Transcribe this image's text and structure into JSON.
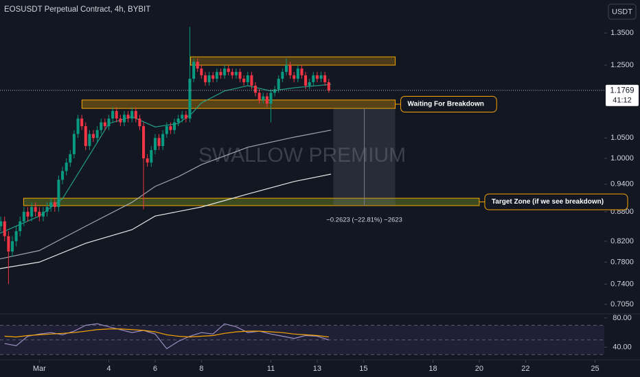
{
  "chart_data": [
    {
      "type": "candlestick",
      "title": "EOSUSDT Perpetual Contract, 4h, BYBIT",
      "watermark": "SWALLOW PREMIUM",
      "currency": "USDT",
      "x": [
        -0.667,
        -0.5,
        -0.333,
        -0.167,
        0,
        0.167,
        0.333,
        0.5,
        0.667,
        0.833,
        1,
        1.167,
        1.333,
        1.5,
        1.667,
        1.833,
        2,
        2.167,
        2.333,
        2.5,
        2.667,
        2.833,
        3,
        3.167,
        3.333,
        3.5,
        3.667,
        3.833,
        4,
        4.167,
        4.333,
        4.5,
        4.667,
        4.833,
        5,
        5.167,
        5.333,
        5.5,
        5.667,
        5.833,
        6,
        6.167,
        6.333,
        6.5,
        6.667,
        6.833,
        7,
        7.167,
        7.333,
        7.5,
        7.667,
        7.833,
        8,
        8.167,
        8.333,
        8.5,
        8.667,
        8.833,
        9,
        9.167,
        9.333,
        9.5,
        9.667,
        9.833,
        10,
        10.167,
        10.333,
        10.5,
        10.667,
        10.833,
        11,
        11.167,
        11.333,
        11.5,
        11.667,
        11.833,
        12,
        12.167,
        12.333,
        12.5,
        12.667,
        12.833,
        13,
        13.167,
        13.333,
        13.5
      ],
      "open": [
        0.85,
        0.86,
        0.83,
        0.8,
        0.82,
        0.84,
        0.86,
        0.88,
        0.87,
        0.89,
        0.88,
        0.87,
        0.88,
        0.89,
        0.9,
        0.89,
        0.95,
        0.97,
        0.99,
        1.01,
        1.06,
        1.1,
        1.08,
        1.03,
        1.06,
        1.05,
        1.07,
        1.09,
        1.08,
        1.1,
        1.12,
        1.1,
        1.09,
        1.11,
        1.1,
        1.12,
        1.1,
        1.08,
        1.0,
        0.99,
        1.02,
        1.05,
        1.03,
        1.06,
        1.08,
        1.07,
        1.09,
        1.1,
        1.11,
        1.1,
        1.21,
        1.26,
        1.24,
        1.22,
        1.2,
        1.22,
        1.21,
        1.23,
        1.22,
        1.24,
        1.23,
        1.22,
        1.23,
        1.21,
        1.2,
        1.22,
        1.19,
        1.17,
        1.15,
        1.16,
        1.14,
        1.17,
        1.18,
        1.21,
        1.23,
        1.25,
        1.22,
        1.21,
        1.24,
        1.22,
        1.19,
        1.2,
        1.22,
        1.21,
        1.22,
        1.2
      ],
      "high": [
        0.87,
        0.87,
        0.84,
        0.83,
        0.85,
        0.87,
        0.89,
        0.89,
        0.9,
        0.9,
        0.89,
        0.89,
        0.9,
        0.91,
        0.91,
        0.96,
        0.98,
        1.0,
        1.02,
        1.07,
        1.11,
        1.11,
        1.09,
        1.07,
        1.07,
        1.08,
        1.1,
        1.1,
        1.11,
        1.13,
        1.13,
        1.11,
        1.12,
        1.12,
        1.13,
        1.13,
        1.11,
        1.09,
        1.01,
        1.03,
        1.06,
        1.06,
        1.07,
        1.09,
        1.09,
        1.1,
        1.11,
        1.12,
        1.12,
        1.37,
        1.27,
        1.27,
        1.25,
        1.23,
        1.23,
        1.23,
        1.24,
        1.24,
        1.25,
        1.25,
        1.24,
        1.24,
        1.24,
        1.22,
        1.23,
        1.23,
        1.2,
        1.18,
        1.17,
        1.17,
        1.18,
        1.19,
        1.22,
        1.24,
        1.27,
        1.26,
        1.23,
        1.25,
        1.25,
        1.23,
        1.21,
        1.23,
        1.23,
        1.23,
        1.23,
        1.21
      ],
      "low": [
        0.84,
        0.82,
        0.74,
        0.79,
        0.81,
        0.83,
        0.85,
        0.86,
        0.86,
        0.87,
        0.86,
        0.86,
        0.87,
        0.88,
        0.88,
        0.88,
        0.94,
        0.96,
        0.98,
        1.0,
        1.05,
        1.07,
        1.02,
        1.02,
        1.04,
        1.04,
        1.06,
        1.07,
        1.07,
        1.09,
        1.09,
        1.08,
        1.08,
        1.09,
        1.09,
        1.09,
        1.07,
        0.885,
        0.98,
        0.98,
        1.01,
        1.02,
        1.02,
        1.05,
        1.06,
        1.06,
        1.08,
        1.09,
        1.09,
        1.09,
        1.2,
        1.23,
        1.21,
        1.19,
        1.19,
        1.2,
        1.2,
        1.21,
        1.21,
        1.22,
        1.21,
        1.21,
        1.2,
        1.19,
        1.19,
        1.18,
        1.16,
        1.14,
        1.14,
        1.13,
        1.09,
        1.16,
        1.17,
        1.2,
        1.22,
        1.21,
        1.2,
        1.2,
        1.21,
        1.18,
        1.18,
        1.19,
        1.2,
        1.2,
        1.19,
        1.17
      ],
      "close": [
        0.86,
        0.83,
        0.8,
        0.82,
        0.84,
        0.86,
        0.88,
        0.87,
        0.89,
        0.88,
        0.87,
        0.88,
        0.89,
        0.9,
        0.89,
        0.95,
        0.97,
        0.99,
        1.01,
        1.06,
        1.1,
        1.08,
        1.03,
        1.06,
        1.05,
        1.07,
        1.09,
        1.08,
        1.1,
        1.12,
        1.1,
        1.09,
        1.11,
        1.1,
        1.12,
        1.1,
        1.08,
        1.0,
        0.99,
        1.02,
        1.05,
        1.03,
        1.06,
        1.08,
        1.07,
        1.09,
        1.1,
        1.11,
        1.1,
        1.21,
        1.26,
        1.24,
        1.22,
        1.2,
        1.22,
        1.21,
        1.23,
        1.22,
        1.24,
        1.23,
        1.22,
        1.23,
        1.21,
        1.2,
        1.22,
        1.19,
        1.17,
        1.15,
        1.16,
        1.14,
        1.17,
        1.18,
        1.21,
        1.23,
        1.25,
        1.22,
        1.21,
        1.24,
        1.22,
        1.19,
        1.2,
        1.22,
        1.21,
        1.22,
        1.2,
        1.1769
      ],
      "up_color": "#089981",
      "down_color": "#f23645",
      "xlim": [
        -0.7,
        25.4
      ],
      "xticks": [
        {
          "value": 1,
          "label": "Mar"
        },
        4,
        6,
        8,
        11,
        13,
        15,
        18,
        20,
        22,
        25
      ],
      "ylim": [
        0.689,
        1.461
      ],
      "log_scale": true,
      "yticks": [
        {
          "value": 1.35,
          "label": "1.3500"
        },
        {
          "value": 1.25,
          "label": "1.2500"
        },
        {
          "value": 1.05,
          "label": "1.0500"
        },
        {
          "value": 1.0,
          "label": "1.0000"
        },
        {
          "value": 0.94,
          "label": "0.9400"
        },
        {
          "value": 0.88,
          "label": "0.8800"
        },
        {
          "value": 0.82,
          "label": "0.8200"
        },
        {
          "value": 0.78,
          "label": "0.7800"
        },
        {
          "value": 0.74,
          "label": "0.7400"
        },
        {
          "value": 0.705,
          "label": "0.7050"
        }
      ],
      "grid": false,
      "last_price": {
        "value": 1.1769,
        "label": "1.1769"
      },
      "countdown": "41:12",
      "overlays": [
        {
          "color": "#ffffff",
          "x": [
            -0.7,
            1,
            3,
            5,
            6,
            8,
            10,
            12,
            13.6
          ],
          "values": [
            0.768,
            0.78,
            0.816,
            0.843,
            0.871,
            0.89,
            0.918,
            0.946,
            0.963
          ]
        },
        {
          "color": "#b2b5be",
          "x": [
            -0.7,
            1,
            3,
            5,
            6,
            7,
            8,
            10,
            12,
            13.6
          ],
          "values": [
            0.786,
            0.802,
            0.85,
            0.9,
            0.935,
            0.957,
            0.985,
            1.027,
            1.052,
            1.07
          ]
        },
        {
          "color": "#22ab94",
          "x": [
            -0.7,
            1,
            2,
            3,
            4,
            5,
            6,
            7,
            7.6,
            8,
            9,
            10,
            11,
            12,
            13.6
          ],
          "values": [
            0.836,
            0.871,
            0.908,
            0.993,
            1.087,
            1.105,
            1.078,
            1.087,
            1.114,
            1.142,
            1.175,
            1.19,
            1.175,
            1.184,
            1.194
          ]
        }
      ],
      "zones": [
        {
          "x": [
            7.53,
            16.37
          ],
          "y": [
            1.25,
            1.275
          ],
          "color": "#f7a600",
          "fill": "rgba(247,166,0,0.25)"
        },
        {
          "label": "Waiting For Breakdown",
          "x": [
            2.84,
            16.37
          ],
          "y": [
            1.127,
            1.15
          ],
          "color": "#f7a600",
          "fill": "rgba(247,166,0,0.3)"
        },
        {
          "label": "Target Zone (if we see breakdown)",
          "x": [
            0.32,
            20.0
          ],
          "y": [
            0.893,
            0.909
          ],
          "color": "#f7a600",
          "fill": "rgba(110,140,30,0.45)"
        }
      ],
      "measure": {
        "label": "−0.2623 (−22.81%) −2623",
        "x": [
          13.7,
          16.37
        ],
        "y": [
          0.893,
          1.127
        ]
      }
    },
    {
      "type": "line",
      "x": [
        -0.5,
        0,
        0.5,
        1,
        1.5,
        2,
        2.5,
        3,
        3.5,
        4,
        4.5,
        5,
        5.5,
        6,
        6.5,
        7,
        7.5,
        8,
        8.5,
        9,
        9.5,
        10,
        10.5,
        11,
        11.5,
        12,
        12.5,
        13,
        13.5
      ],
      "xlim": [
        -0.7,
        25.4
      ],
      "series": [
        {
          "color": "#9e8fc4",
          "values": [
            45,
            42,
            55,
            58,
            60,
            57,
            62,
            70,
            72,
            68,
            64,
            60,
            63,
            58,
            38,
            48,
            55,
            60,
            58,
            72,
            68,
            60,
            62,
            58,
            55,
            52,
            56,
            55,
            50
          ]
        },
        {
          "color": "#f7a600",
          "values": [
            55,
            54,
            56,
            57,
            58,
            59,
            60,
            62,
            64,
            65,
            65,
            64,
            63,
            61,
            57,
            55,
            54,
            55,
            56,
            59,
            61,
            62,
            62,
            61,
            60,
            58,
            57,
            56,
            54
          ]
        }
      ],
      "ylim": [
        22.7,
        85.5
      ],
      "yticks": [
        {
          "value": 80,
          "label": "80.00"
        },
        {
          "value": 40,
          "label": "40.00"
        }
      ],
      "levels": [
        70,
        50,
        30
      ]
    }
  ]
}
